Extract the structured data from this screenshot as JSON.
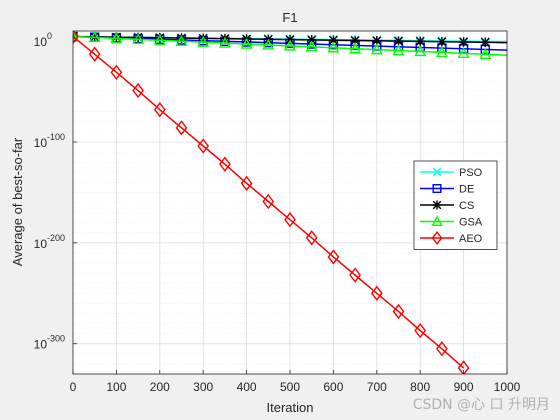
{
  "chart_data": {
    "type": "line",
    "title": "F1",
    "xlabel": "Iteration",
    "ylabel": "Average of best-so-far",
    "x_scale": "linear",
    "y_scale": "log",
    "xlim": [
      0,
      1000
    ],
    "ylim_exponent": [
      -330,
      10
    ],
    "grid": true,
    "minor_grid": true,
    "legend_position": "right",
    "x_ticks": [
      0,
      100,
      200,
      300,
      400,
      500,
      600,
      700,
      800,
      900,
      1000
    ],
    "y_ticks": [
      {
        "base": "10",
        "exp": "0",
        "value_exp": 0
      },
      {
        "base": "10",
        "exp": "-100",
        "value_exp": -100
      },
      {
        "base": "10",
        "exp": "-200",
        "value_exp": -200
      },
      {
        "base": "10",
        "exp": "-300",
        "value_exp": -300
      }
    ],
    "marker_x": [
      0,
      50,
      100,
      150,
      200,
      250,
      300,
      350,
      400,
      450,
      500,
      550,
      600,
      650,
      700,
      750,
      800,
      850,
      900,
      950
    ],
    "series": [
      {
        "name": "PSO",
        "color": "#00ffff",
        "marker": "x",
        "x": [
          0,
          1000
        ],
        "log10_y": [
          4.5,
          -0.5
        ]
      },
      {
        "name": "DE",
        "color": "#0000ff",
        "marker": "square",
        "x": [
          0,
          1000
        ],
        "log10_y": [
          4.5,
          -9
        ]
      },
      {
        "name": "CS",
        "color": "#000000",
        "marker": "asterisk",
        "x": [
          0,
          1000
        ],
        "log10_y": [
          4.5,
          -1.5
        ]
      },
      {
        "name": "GSA",
        "color": "#00ff00",
        "marker": "triangle",
        "x": [
          0,
          1000
        ],
        "log10_y": [
          4.5,
          -14
        ]
      },
      {
        "name": "AEO",
        "color": "#ff0000",
        "marker": "diamond",
        "x": [
          0,
          50,
          100,
          150,
          200,
          250,
          300,
          350,
          400,
          450,
          500,
          550,
          600,
          650,
          700,
          750,
          800,
          850,
          900
        ],
        "log10_y": [
          4.5,
          -13,
          -31,
          -49,
          -68,
          -86,
          -104,
          -122,
          -141,
          -159,
          -177,
          -195,
          -214,
          -232,
          -250,
          -268,
          -287,
          -305,
          -324
        ]
      }
    ]
  },
  "watermark": "CSDN @心 口 升明月"
}
